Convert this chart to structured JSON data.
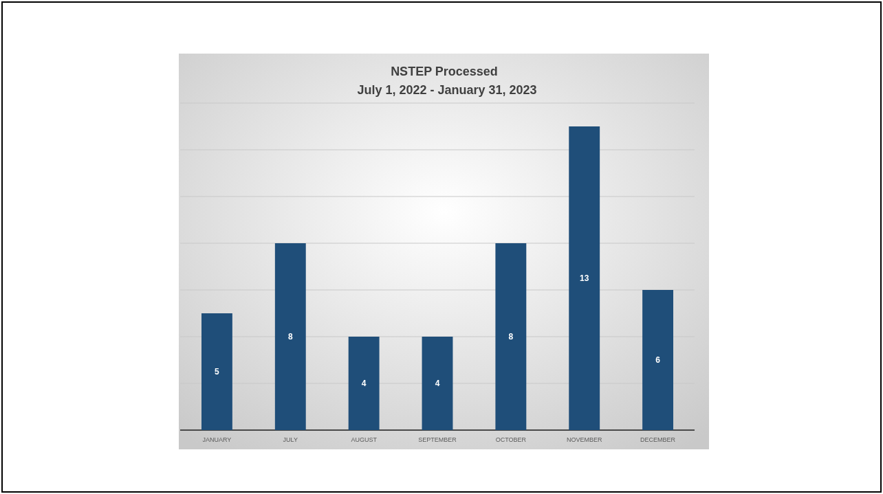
{
  "chart_data": {
    "type": "bar",
    "title": "NSTEP Processed",
    "subtitle": "July 1, 2022 - January 31, 2023",
    "categories": [
      "JANUARY",
      "JULY",
      "AUGUST",
      "SEPTEMBER",
      "OCTOBER",
      "NOVEMBER",
      "DECEMBER"
    ],
    "values": [
      5,
      8,
      4,
      4,
      8,
      13,
      6
    ],
    "color": "#1f4e79",
    "data_labels": true,
    "ylim": [
      0,
      14
    ],
    "yticks": [
      {
        "value": 0,
        "label": null
      },
      {
        "value": 2,
        "label": null
      },
      {
        "value": 4,
        "label": null
      },
      {
        "value": 6,
        "label": null
      },
      {
        "value": 8,
        "label": null
      },
      {
        "value": 10,
        "label": null
      },
      {
        "value": 12,
        "label": null
      },
      {
        "value": 14,
        "label": null
      }
    ],
    "grid": "y",
    "tick_labels": "x"
  }
}
